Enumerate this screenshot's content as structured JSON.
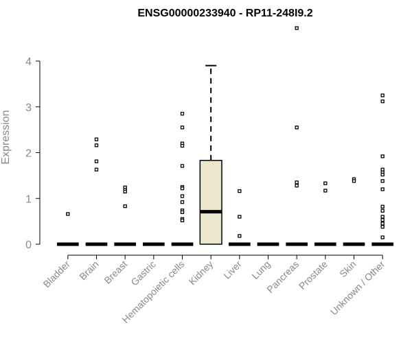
{
  "chart_data": {
    "type": "boxplot",
    "title": "ENSG00000233940 - RP11-248I9.2",
    "xlabel": "",
    "ylabel": "Expression",
    "ylim": [
      0,
      4.8
    ],
    "yticks": [
      "0",
      "1",
      "2",
      "3",
      "4"
    ],
    "grid": false,
    "colors": {
      "box_fill": "#ece6cc",
      "stroke": "#000000",
      "axis_text": "#888888"
    },
    "categories": [
      "Bladder",
      "Brain",
      "Breast",
      "Gastric",
      "Hematopoietic cells",
      "Kidney",
      "Liver",
      "Lung",
      "Pancreas",
      "Prostate",
      "Skin",
      "Unknown / Other"
    ],
    "boxes": [
      {
        "category": "Bladder",
        "min": 0,
        "q1": 0,
        "median": 0,
        "q3": 0,
        "max": 0,
        "outliers": [
          0.66
        ]
      },
      {
        "category": "Brain",
        "min": 0,
        "q1": 0,
        "median": 0,
        "q3": 0,
        "max": 0,
        "outliers": [
          2.29,
          2.16,
          1.81,
          1.63
        ]
      },
      {
        "category": "Breast",
        "min": 0,
        "q1": 0,
        "median": 0,
        "q3": 0,
        "max": 0,
        "outliers": [
          1.24,
          1.19,
          1.15,
          0.83
        ]
      },
      {
        "category": "Gastric",
        "min": 0,
        "q1": 0,
        "median": 0,
        "q3": 0,
        "max": 0,
        "outliers": []
      },
      {
        "category": "Hematopoietic cells",
        "min": 0,
        "q1": 0,
        "median": 0,
        "q3": 0,
        "max": 0,
        "outliers": [
          2.85,
          2.55,
          2.2,
          2.15,
          1.71,
          1.25,
          1.22,
          1.05,
          0.92,
          0.74,
          0.7,
          0.55,
          0.52
        ]
      },
      {
        "category": "Kidney",
        "min": 0,
        "q1": 0,
        "median": 0.71,
        "q3": 1.83,
        "max": 3.9,
        "outliers": []
      },
      {
        "category": "Liver",
        "min": 0,
        "q1": 0,
        "median": 0,
        "q3": 0,
        "max": 0,
        "outliers": [
          1.16,
          0.6,
          0.18
        ]
      },
      {
        "category": "Lung",
        "min": 0,
        "q1": 0,
        "median": 0,
        "q3": 0,
        "max": 0,
        "outliers": []
      },
      {
        "category": "Pancreas",
        "min": 0,
        "q1": 0,
        "median": 0,
        "q3": 0,
        "max": 0,
        "outliers": [
          4.72,
          2.55,
          1.35,
          1.28
        ]
      },
      {
        "category": "Prostate",
        "min": 0,
        "q1": 0,
        "median": 0,
        "q3": 0,
        "max": 0,
        "outliers": [
          1.33,
          1.17
        ]
      },
      {
        "category": "Skin",
        "min": 0,
        "q1": 0,
        "median": 0,
        "q3": 0,
        "max": 0,
        "outliers": [
          1.42,
          1.38
        ]
      },
      {
        "category": "Unknown / Other",
        "min": 0,
        "q1": 0,
        "median": 0,
        "q3": 0,
        "max": 0,
        "outliers": [
          3.25,
          3.12,
          1.92,
          1.63,
          1.57,
          1.52,
          1.38,
          1.2,
          0.82,
          0.73,
          0.6,
          0.53,
          0.45,
          0.38,
          0.15
        ]
      }
    ]
  }
}
